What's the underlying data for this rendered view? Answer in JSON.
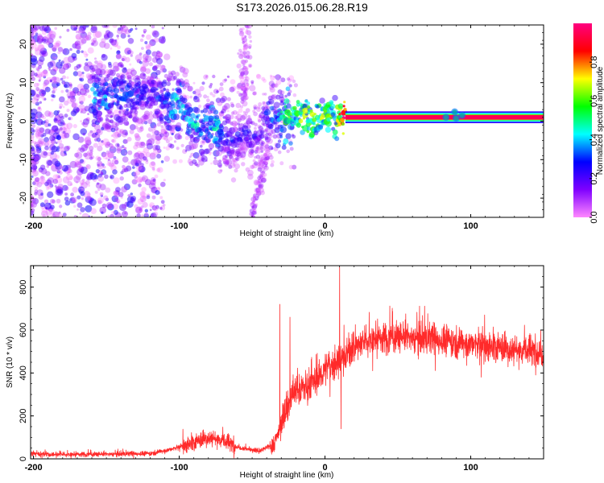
{
  "title": "S173.2026.015.06.28.R19",
  "chart_data": [
    {
      "type": "heatmap",
      "name": "frequency-spectrogram",
      "xlabel": "Height of straight line (km)",
      "ylabel": "Frequency (Hz)",
      "xlim": [
        -202,
        150
      ],
      "ylim": [
        -25,
        25
      ],
      "xticks": [
        "-200",
        "-100",
        "0",
        "100"
      ],
      "yticks": [
        "20",
        "10",
        "0",
        "-10",
        "-20"
      ],
      "colorbar": {
        "label": "Normalized spectral amplitude",
        "ticks": [
          "0.0",
          "0.2",
          "0.4",
          "0.6",
          "0.8"
        ],
        "range": [
          0,
          1
        ],
        "stops": [
          "#ff88ff",
          "#7f00ff",
          "#0000ff",
          "#00ffff",
          "#00ff00",
          "#ffff00",
          "#ff0000",
          "#ff0080"
        ]
      },
      "ridge": [
        {
          "x": -160,
          "y": 5.5,
          "a": 0.4
        },
        {
          "x": -118,
          "y": 7,
          "a": 0.25
        },
        {
          "x": -108,
          "y": 4.5,
          "a": 0.35
        },
        {
          "x": -103,
          "y": 3.5,
          "a": 0.45
        },
        {
          "x": -98,
          "y": 4.5,
          "a": 0.4
        },
        {
          "x": -93,
          "y": 0,
          "a": 0.35
        },
        {
          "x": -88,
          "y": -1.5,
          "a": 0.4
        },
        {
          "x": -82,
          "y": -0.5,
          "a": 0.35
        },
        {
          "x": -76,
          "y": -1,
          "a": 0.45
        },
        {
          "x": -70,
          "y": -3,
          "a": 0.35
        },
        {
          "x": -65,
          "y": -5,
          "a": 0.25
        },
        {
          "x": -55,
          "y": -3,
          "a": 0.25
        },
        {
          "x": -45,
          "y": -5,
          "a": 0.2
        },
        {
          "x": -38,
          "y": 3,
          "a": 0.3
        },
        {
          "x": -32,
          "y": 0,
          "a": 0.4
        },
        {
          "x": -28,
          "y": 0,
          "a": 0.5
        },
        {
          "x": -22,
          "y": 1,
          "a": 0.55
        },
        {
          "x": -18,
          "y": 1.5,
          "a": 0.6
        },
        {
          "x": -12,
          "y": 1.5,
          "a": 0.6
        },
        {
          "x": -5,
          "y": 0.5,
          "a": 0.6
        },
        {
          "x": 2,
          "y": 1.5,
          "a": 0.55
        },
        {
          "x": 8,
          "y": 1,
          "a": 0.6
        },
        {
          "x": 14,
          "y": 1,
          "a": 0.95
        },
        {
          "x": 80,
          "y": 1,
          "a": 0.9
        },
        {
          "x": 89,
          "y": 2,
          "a": 0.6
        },
        {
          "x": 95,
          "y": 1,
          "a": 0.9
        },
        {
          "x": 150,
          "y": 1,
          "a": 0.9
        }
      ]
    },
    {
      "type": "line",
      "name": "snr-trace",
      "xlabel": "Height of straight line (km)",
      "ylabel": "SNR (10 * v/v)",
      "xlim": [
        -202,
        150
      ],
      "ylim": [
        0,
        900
      ],
      "xticks": [
        "-200",
        "-100",
        "0",
        "100"
      ],
      "yticks": [
        "0",
        "200",
        "400",
        "600",
        "800"
      ],
      "color": "#ff2a2a",
      "trend": {
        "x": [
          -202,
          -190,
          -150,
          -120,
          -105,
          -90,
          -80,
          -72,
          -60,
          -45,
          -35,
          -28,
          -22,
          -15,
          -5,
          0,
          10,
          20,
          30,
          50,
          70,
          90,
          110,
          130,
          150
        ],
        "y": [
          25,
          20,
          22,
          25,
          45,
          75,
          100,
          90,
          55,
          35,
          70,
          200,
          310,
          330,
          370,
          420,
          460,
          520,
          555,
          570,
          560,
          545,
          525,
          510,
          495
        ]
      },
      "spikes": [
        {
          "x": -31,
          "y": 720
        },
        {
          "x": -24,
          "y": 660
        },
        {
          "x": 10,
          "y": 895
        },
        {
          "x": 11,
          "y": 140
        }
      ]
    }
  ]
}
